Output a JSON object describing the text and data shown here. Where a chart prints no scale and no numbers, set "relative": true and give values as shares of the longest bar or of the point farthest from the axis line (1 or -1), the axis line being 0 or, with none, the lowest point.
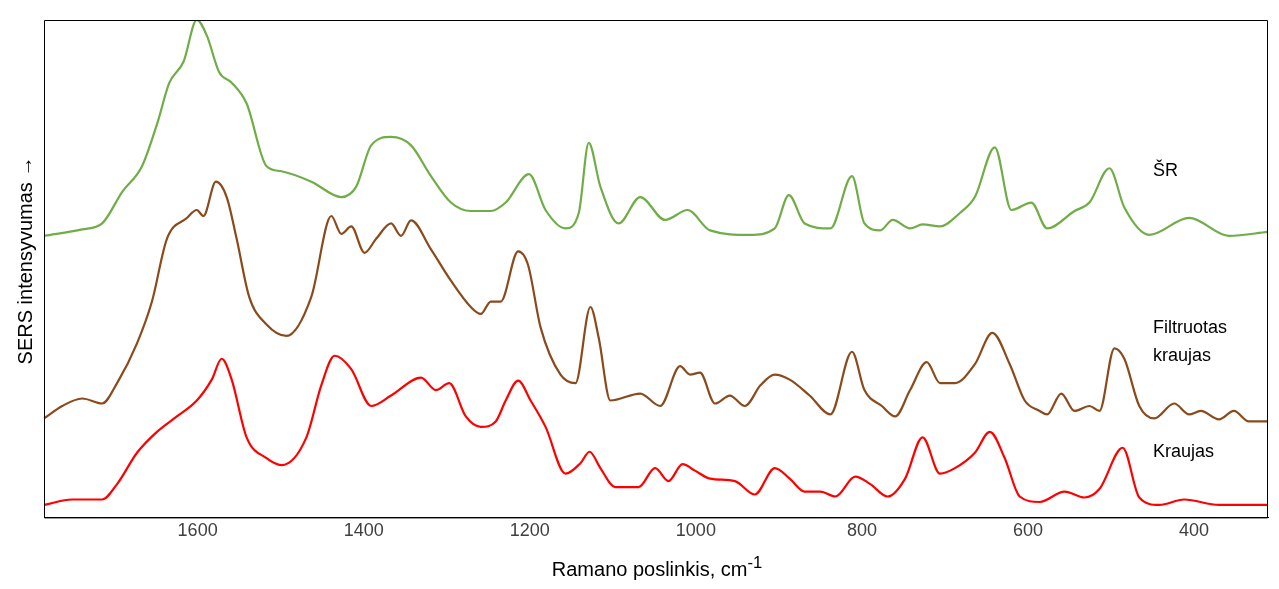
{
  "chart_data": {
    "type": "line",
    "relative": true,
    "xlabel": "Ramano poslinkis, cm$^{-1}$",
    "ylabel": "SERS intensyvumas →",
    "xlim": [
      1785,
      311
    ],
    "xticks": [
      1600,
      1400,
      1200,
      1000,
      800,
      600,
      400
    ],
    "grid": false,
    "legend": false,
    "marker": "none",
    "line_style": "solid",
    "series": [
      {
        "name": "ŠR",
        "color": "#70ad47",
        "x": [
          1785,
          1739,
          1715,
          1691,
          1667,
          1649,
          1634,
          1617,
          1601,
          1589,
          1574,
          1559,
          1541,
          1517,
          1499,
          1463,
          1427,
          1409,
          1391,
          1367,
          1343,
          1319,
          1295,
          1271,
          1247,
          1229,
          1201,
          1181,
          1157,
          1141,
          1129,
          1115,
          1093,
          1067,
          1037,
          1010,
          983,
          935,
          905,
          888,
          869,
          838,
          812,
          797,
          778,
          763,
          742,
          727,
          706,
          682,
          664,
          640,
          620,
          596,
          577,
          544,
          526,
          502,
          484,
          454,
          406,
          358,
          311
        ],
        "values": [
          0.566,
          0.579,
          0.591,
          0.654,
          0.706,
          0.79,
          0.874,
          0.916,
          1,
          0.969,
          0.895,
          0.874,
          0.832,
          0.706,
          0.696,
          0.675,
          0.644,
          0.665,
          0.748,
          0.765,
          0.748,
          0.686,
          0.633,
          0.616,
          0.616,
          0.633,
          0.69,
          0.618,
          0.581,
          0.612,
          0.753,
          0.665,
          0.591,
          0.644,
          0.598,
          0.618,
          0.577,
          0.568,
          0.581,
          0.648,
          0.591,
          0.581,
          0.686,
          0.591,
          0.577,
          0.598,
          0.581,
          0.589,
          0.585,
          0.612,
          0.644,
          0.744,
          0.618,
          0.633,
          0.581,
          0.616,
          0.633,
          0.702,
          0.623,
          0.568,
          0.602,
          0.566,
          0.574
        ]
      },
      {
        "name": "Filtruotas kraujas",
        "color": "#8b4a1c",
        "x": [
          1785,
          1763,
          1739,
          1715,
          1697,
          1673,
          1655,
          1637,
          1613,
          1601,
          1593,
          1578,
          1565,
          1553,
          1538,
          1517,
          1493,
          1463,
          1439,
          1427,
          1415,
          1399,
          1385,
          1367,
          1355,
          1343,
          1319,
          1295,
          1271,
          1259,
          1247,
          1235,
          1214,
          1202,
          1187,
          1163,
          1145,
          1127,
          1117,
          1103,
          1067,
          1043,
          1019,
          1007,
          995,
          977,
          959,
          941,
          922,
          905,
          887,
          863,
          838,
          812,
          797,
          776,
          760,
          742,
          722,
          706,
          688,
          664,
          643,
          622,
          604,
          586,
          577,
          560,
          544,
          526,
          514,
          496,
          484,
          466,
          448,
          424,
          406,
          392,
          370,
          352,
          334,
          311
        ],
        "values": [
          0.199,
          0.224,
          0.239,
          0.229,
          0.27,
          0.35,
          0.434,
          0.56,
          0.602,
          0.618,
          0.606,
          0.675,
          0.644,
          0.56,
          0.444,
          0.388,
          0.365,
          0.444,
          0.606,
          0.57,
          0.585,
          0.532,
          0.56,
          0.591,
          0.566,
          0.597,
          0.539,
          0.476,
          0.423,
          0.409,
          0.434,
          0.434,
          0.535,
          0.507,
          0.382,
          0.287,
          0.27,
          0.423,
          0.361,
          0.235,
          0.249,
          0.224,
          0.304,
          0.287,
          0.291,
          0.229,
          0.245,
          0.224,
          0.266,
          0.287,
          0.277,
          0.245,
          0.207,
          0.333,
          0.256,
          0.224,
          0.203,
          0.256,
          0.312,
          0.27,
          0.27,
          0.308,
          0.371,
          0.308,
          0.235,
          0.214,
          0.207,
          0.249,
          0.214,
          0.224,
          0.214,
          0.34,
          0.319,
          0.224,
          0.199,
          0.229,
          0.207,
          0.214,
          0.197,
          0.214,
          0.193,
          0.193
        ]
      },
      {
        "name": "Kraujas",
        "color": "#ff0000",
        "x": [
          1785,
          1751,
          1715,
          1697,
          1673,
          1649,
          1625,
          1601,
          1583,
          1571,
          1559,
          1541,
          1517,
          1499,
          1469,
          1451,
          1435,
          1415,
          1391,
          1367,
          1331,
          1313,
          1297,
          1277,
          1259,
          1241,
          1229,
          1214,
          1199,
          1181,
          1157,
          1139,
          1128,
          1115,
          1097,
          1069,
          1049,
          1033,
          1016,
          1001,
          983,
          953,
          929,
          905,
          887,
          869,
          850,
          832,
          808,
          790,
          769,
          748,
          727,
          706,
          688,
          664,
          646,
          628,
          610,
          586,
          556,
          532,
          514,
          486,
          466,
          442,
          412,
          370,
          311
        ],
        "values": [
          0.025,
          0.036,
          0.036,
          0.067,
          0.13,
          0.172,
          0.203,
          0.235,
          0.277,
          0.319,
          0.277,
          0.161,
          0.119,
          0.105,
          0.161,
          0.266,
          0.325,
          0.298,
          0.224,
          0.245,
          0.281,
          0.256,
          0.27,
          0.203,
          0.182,
          0.193,
          0.235,
          0.275,
          0.235,
          0.182,
          0.088,
          0.109,
          0.132,
          0.099,
          0.061,
          0.061,
          0.099,
          0.073,
          0.107,
          0.094,
          0.078,
          0.073,
          0.046,
          0.099,
          0.078,
          0.052,
          0.052,
          0.042,
          0.082,
          0.067,
          0.042,
          0.078,
          0.161,
          0.088,
          0.099,
          0.13,
          0.172,
          0.119,
          0.042,
          0.031,
          0.052,
          0.04,
          0.057,
          0.14,
          0.04,
          0.025,
          0.036,
          0.025,
          0.025
        ]
      }
    ]
  }
}
